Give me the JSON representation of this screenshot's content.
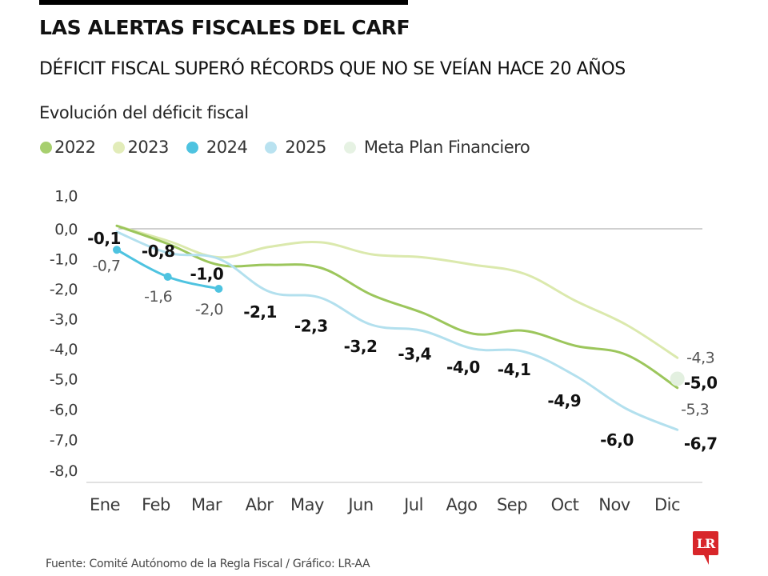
{
  "header": {
    "title": "LAS ALERTAS FISCALES DEL CARF",
    "subtitle": "DÉFICIT FISCAL SUPERÓ RÉCORDS QUE NO SE VEÍAN HACE 20 AÑOS"
  },
  "legend": [
    {
      "label": "2022",
      "color": "#a7cf6e"
    },
    {
      "label": "2023",
      "color": "#e2ecb9"
    },
    {
      "label": "2024",
      "color": "#4ec3e0"
    },
    {
      "label": "2025",
      "color": "#b9e2f0"
    },
    {
      "label": "Meta Plan Financiero",
      "color": "#e6f2e3"
    }
  ],
  "footer": {
    "source": "Fuente: Comité Autónomo de la Regla Fiscal / Gráfico: LR-AA",
    "logo_text": "LR",
    "logo_color": "#d8262a"
  },
  "chart_data": {
    "type": "line",
    "title": "Evolución del déficit fiscal",
    "xlabel": "",
    "ylabel": "",
    "categories": [
      "Ene",
      "Feb",
      "Mar",
      "Abr",
      "May",
      "Jun",
      "Jul",
      "Ago",
      "Sep",
      "Oct",
      "Nov",
      "Dic"
    ],
    "ylim": [
      -8.0,
      1.0
    ],
    "yticks": [
      "1,0",
      "0,0",
      "-1,0",
      "-2,0",
      "-3,0",
      "-4,0",
      "-5,0",
      "-6,0",
      "-7,0",
      "-8,0"
    ],
    "ytick_values": [
      1,
      0,
      -1,
      -2,
      -3,
      -4,
      -5,
      -6,
      -7,
      -8
    ],
    "grid": "zero-line only",
    "legend_position": "top-left",
    "series": [
      {
        "name": "2022",
        "color": "#9cc65c",
        "values": [
          0.1,
          -0.5,
          -1.2,
          -1.2,
          -1.3,
          -2.2,
          -2.8,
          -3.5,
          -3.4,
          -3.9,
          -4.2,
          -5.3
        ],
        "labels": {
          "11": "-5,3"
        },
        "label_style": "normal",
        "markers": false
      },
      {
        "name": "2023",
        "color": "#dbe9ad",
        "values": [
          0.1,
          -0.4,
          -0.95,
          -0.6,
          -0.45,
          -0.85,
          -0.95,
          -1.2,
          -1.5,
          -2.4,
          -3.2,
          -4.3
        ],
        "labels": {
          "11": "-4,3"
        },
        "label_style": "normal",
        "markers": false
      },
      {
        "name": "2024",
        "color": "#4ec3e0",
        "values": [
          -0.7,
          -1.6,
          -2.0
        ],
        "labels": {
          "0": "-0,7",
          "1": "-1,6",
          "2": "-2,0"
        },
        "label_style": "normal",
        "markers": true
      },
      {
        "name": "2025",
        "color": "#b3e0ee",
        "values": [
          -0.1,
          -0.8,
          -1.0,
          -2.1,
          -2.3,
          -3.2,
          -3.4,
          -4.0,
          -4.1,
          -4.9,
          -6.0,
          -6.7
        ],
        "labels": {
          "0": "-0,1",
          "1": "-0,8",
          "2": "-1,0",
          "3": "-2,1",
          "4": "-2,3",
          "5": "-3,2",
          "6": "-3,4",
          "7": "-4,0",
          "8": "-4,1",
          "9": "-4,9",
          "10": "-6,0",
          "11": "-6,7"
        },
        "label_style": "bold",
        "markers": false
      },
      {
        "name": "Meta Plan Financiero",
        "color": "#e3f0e0",
        "points": [
          {
            "month": "Dic",
            "value": -5.0
          }
        ],
        "labels": {
          "11": "-5,0"
        },
        "label_style": "bold",
        "markers": true
      }
    ]
  }
}
